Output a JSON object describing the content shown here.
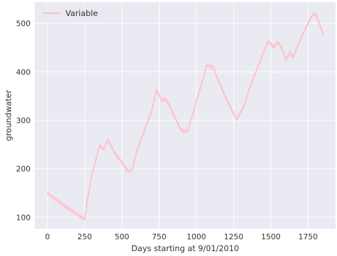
{
  "chart_data": {
    "type": "line",
    "title": "",
    "xlabel": "Days starting at 9/01/2010",
    "ylabel": "groundwater",
    "xlim": [
      -85,
      1935
    ],
    "ylim": [
      76,
      544
    ],
    "x_ticks": [
      0,
      250,
      500,
      750,
      1000,
      1250,
      1500,
      1750
    ],
    "y_ticks": [
      100,
      200,
      300,
      400,
      500
    ],
    "grid": true,
    "legend": "upper-left",
    "background": "#eaeaf2",
    "series": [
      {
        "name": "Variable",
        "color": "#ffc0cb",
        "band_halfwidth": 5,
        "x": [
          0,
          50,
          100,
          150,
          200,
          250,
          270,
          300,
          350,
          380,
          400,
          420,
          450,
          500,
          540,
          570,
          600,
          650,
          700,
          730,
          750,
          770,
          790,
          820,
          850,
          880,
          900,
          920,
          940,
          960,
          980,
          1000,
          1040,
          1070,
          1100,
          1115,
          1130,
          1150,
          1200,
          1240,
          1270,
          1300,
          1320,
          1350,
          1400,
          1450,
          1480,
          1500,
          1520,
          1545,
          1575,
          1600,
          1630,
          1650,
          1700,
          1750,
          1780,
          1800,
          1820,
          1850
        ],
        "y": [
          150,
          138,
          127,
          116,
          106,
          96,
          140,
          190,
          248,
          240,
          260,
          252,
          233,
          213,
          195,
          198,
          238,
          278,
          320,
          362,
          352,
          340,
          345,
          330,
          310,
          290,
          280,
          277,
          277,
          298,
          315,
          340,
          380,
          415,
          410,
          410,
          395,
          380,
          345,
          320,
          302,
          318,
          330,
          360,
          400,
          440,
          462,
          458,
          450,
          462,
          448,
          425,
          440,
          430,
          468,
          500,
          518,
          520,
          505,
          478
        ]
      }
    ]
  }
}
